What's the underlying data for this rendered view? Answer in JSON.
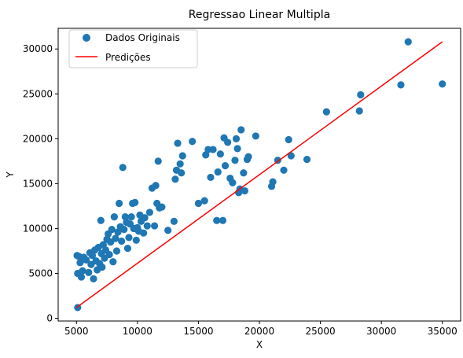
{
  "chart_data": {
    "type": "scatter",
    "title": "Regressao Linear Multipla",
    "xlabel": "X",
    "ylabel": "Y",
    "xlim": [
      3500,
      36500
    ],
    "ylim": [
      -300,
      32300
    ],
    "x_ticks": [
      5000,
      10000,
      15000,
      20000,
      25000,
      30000,
      35000
    ],
    "y_ticks": [
      0,
      5000,
      10000,
      15000,
      20000,
      25000,
      30000
    ],
    "grid": false,
    "legend_position": "top-left",
    "series": [
      {
        "name": "Dados Originais",
        "kind": "scatter",
        "color": "#1f77b4",
        "points": [
          [
            5100,
            1200
          ],
          [
            5050,
            7000
          ],
          [
            5200,
            6900
          ],
          [
            5300,
            6200
          ],
          [
            5100,
            5000
          ],
          [
            5400,
            4600
          ],
          [
            5600,
            6800
          ],
          [
            5500,
            5300
          ],
          [
            5800,
            6500
          ],
          [
            6000,
            5100
          ],
          [
            6100,
            7300
          ],
          [
            6200,
            6000
          ],
          [
            6300,
            7000
          ],
          [
            6400,
            4400
          ],
          [
            6500,
            7600
          ],
          [
            6600,
            6400
          ],
          [
            6700,
            5400
          ],
          [
            6800,
            7900
          ],
          [
            6900,
            6100
          ],
          [
            7000,
            10900
          ],
          [
            7050,
            7200
          ],
          [
            7100,
            5700
          ],
          [
            7200,
            8200
          ],
          [
            7300,
            6700
          ],
          [
            7400,
            7600
          ],
          [
            7500,
            8800
          ],
          [
            7600,
            9400
          ],
          [
            7700,
            7100
          ],
          [
            7800,
            8500
          ],
          [
            7900,
            9900
          ],
          [
            8000,
            6300
          ],
          [
            8100,
            11300
          ],
          [
            8200,
            8900
          ],
          [
            8300,
            7500
          ],
          [
            8400,
            9600
          ],
          [
            8500,
            12800
          ],
          [
            8600,
            10200
          ],
          [
            8700,
            8600
          ],
          [
            8800,
            16800
          ],
          [
            8900,
            9900
          ],
          [
            9000,
            11300
          ],
          [
            9100,
            10700
          ],
          [
            9200,
            7800
          ],
          [
            9300,
            9000
          ],
          [
            9400,
            10500
          ],
          [
            9500,
            11300
          ],
          [
            9600,
            12800
          ],
          [
            9700,
            10000
          ],
          [
            9800,
            12900
          ],
          [
            9900,
            8700
          ],
          [
            10000,
            10100
          ],
          [
            10100,
            9700
          ],
          [
            10200,
            11500
          ],
          [
            10300,
            10800
          ],
          [
            10500,
            9500
          ],
          [
            10600,
            11200
          ],
          [
            10800,
            10300
          ],
          [
            11000,
            11800
          ],
          [
            11200,
            14500
          ],
          [
            11400,
            10300
          ],
          [
            11500,
            14800
          ],
          [
            11600,
            12800
          ],
          [
            11700,
            17500
          ],
          [
            11800,
            12300
          ],
          [
            12000,
            12400
          ],
          [
            12500,
            9800
          ],
          [
            13000,
            10800
          ],
          [
            13100,
            15500
          ],
          [
            13200,
            16500
          ],
          [
            13300,
            19500
          ],
          [
            13500,
            17200
          ],
          [
            13600,
            16200
          ],
          [
            13700,
            18100
          ],
          [
            14500,
            19700
          ],
          [
            15000,
            12800
          ],
          [
            15500,
            13100
          ],
          [
            15600,
            18200
          ],
          [
            15800,
            18800
          ],
          [
            16000,
            15700
          ],
          [
            16200,
            18800
          ],
          [
            16500,
            10900
          ],
          [
            16600,
            16300
          ],
          [
            16800,
            18300
          ],
          [
            17000,
            10900
          ],
          [
            17100,
            20100
          ],
          [
            17200,
            17000
          ],
          [
            17400,
            19600
          ],
          [
            17600,
            15600
          ],
          [
            17800,
            15100
          ],
          [
            18000,
            17600
          ],
          [
            18100,
            20000
          ],
          [
            18200,
            18900
          ],
          [
            18300,
            14000
          ],
          [
            18400,
            14400
          ],
          [
            18500,
            21000
          ],
          [
            18700,
            16200
          ],
          [
            18800,
            14200
          ],
          [
            19000,
            17700
          ],
          [
            19100,
            18000
          ],
          [
            19700,
            20300
          ],
          [
            21000,
            14700
          ],
          [
            21100,
            15200
          ],
          [
            21500,
            17600
          ],
          [
            22000,
            16500
          ],
          [
            22400,
            19900
          ],
          [
            22600,
            18100
          ],
          [
            23900,
            17700
          ],
          [
            25500,
            23000
          ],
          [
            28200,
            23100
          ],
          [
            28300,
            24900
          ],
          [
            31600,
            26000
          ],
          [
            32200,
            30800
          ],
          [
            35000,
            26100
          ]
        ]
      },
      {
        "name": "Predições",
        "kind": "line",
        "color": "#ff0000",
        "x": [
          5000,
          35000
        ],
        "y": [
          1200,
          30800
        ]
      }
    ]
  }
}
